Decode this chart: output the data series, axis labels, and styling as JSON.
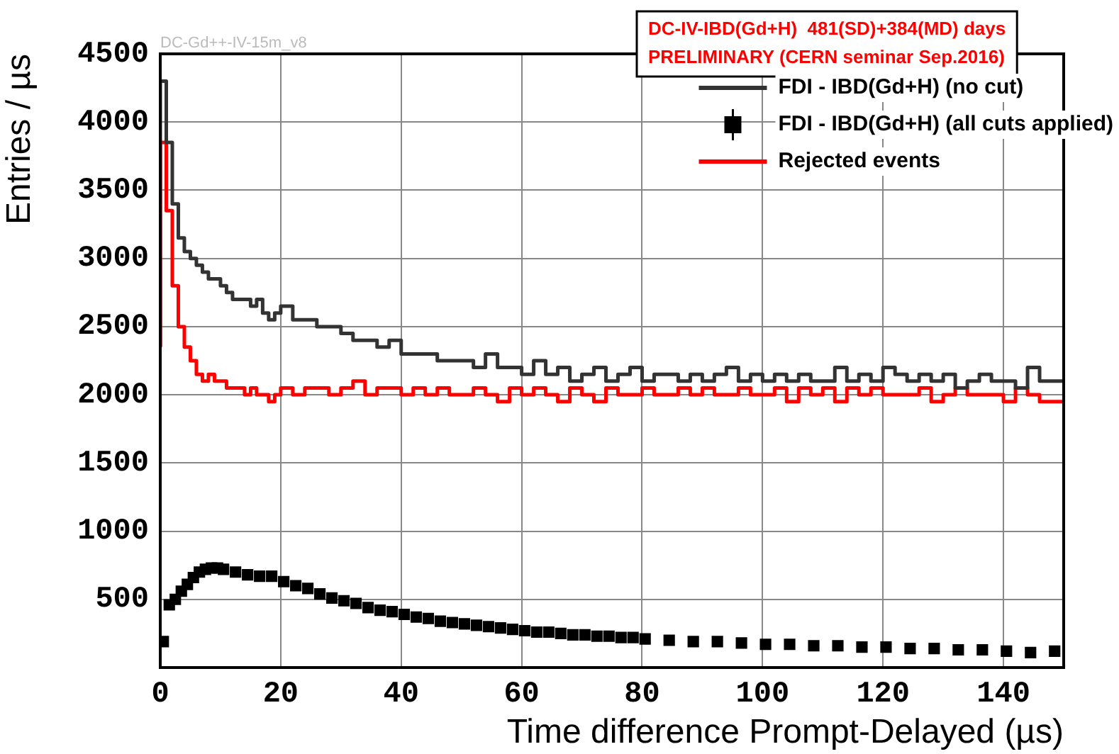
{
  "chart_data": {
    "type": "step",
    "xlabel": "Time difference Prompt-Delayed (µs)",
    "ylabel": "Entries / µs",
    "xlim": [
      0,
      150
    ],
    "xticks": [
      0,
      20,
      40,
      60,
      80,
      100,
      120,
      140
    ],
    "ylim": [
      0,
      4500
    ],
    "yticks": [
      500,
      1000,
      1500,
      2000,
      2500,
      3000,
      3500,
      4000,
      4500
    ],
    "grid": true,
    "legend": "top right",
    "annotations": [
      "DC-Gd++-IV-15m_v8",
      "DC-IV-IBD(Gd+H)  481(SD)+384(MD) days",
      "PRELIMINARY (CERN seminar Sep.2016)"
    ],
    "series": [
      {
        "name": "FDI - IBD(Gd+H) (no cut)",
        "color": "#333333",
        "x": [
          0,
          1,
          2,
          3,
          4,
          5,
          6,
          7,
          8,
          9,
          10,
          11,
          12,
          13,
          14,
          15,
          16,
          17,
          18,
          19,
          20,
          22,
          24,
          26,
          28,
          30,
          32,
          34,
          36,
          38,
          40,
          42,
          44,
          46,
          48,
          50,
          52,
          54,
          56,
          58,
          60,
          62,
          64,
          66,
          68,
          70,
          72,
          74,
          76,
          78,
          80,
          82,
          84,
          86,
          88,
          90,
          92,
          94,
          96,
          98,
          100,
          102,
          104,
          106,
          108,
          110,
          112,
          114,
          116,
          118,
          120,
          122,
          124,
          126,
          128,
          130,
          132,
          134,
          136,
          138,
          140,
          142,
          144,
          146,
          148,
          150
        ],
        "values": [
          2350,
          4300,
          3850,
          3400,
          3150,
          3050,
          3000,
          2950,
          2900,
          2850,
          2850,
          2800,
          2750,
          2700,
          2700,
          2700,
          2650,
          2700,
          2600,
          2550,
          2600,
          2650,
          2550,
          2550,
          2500,
          2500,
          2450,
          2400,
          2400,
          2350,
          2400,
          2300,
          2300,
          2300,
          2250,
          2250,
          2250,
          2200,
          2300,
          2200,
          2200,
          2150,
          2250,
          2150,
          2200,
          2100,
          2150,
          2200,
          2100,
          2150,
          2200,
          2100,
          2150,
          2150,
          2100,
          2150,
          2100,
          2150,
          2200,
          2100,
          2150,
          2100,
          2150,
          2100,
          2150,
          2100,
          2100,
          2200,
          2100,
          2150,
          2100,
          2200,
          2150,
          2100,
          2150,
          2100,
          2150,
          2050,
          2100,
          2150,
          2100,
          2100,
          2050,
          2200,
          2100,
          2100
        ]
      },
      {
        "name": "FDI - IBD(Gd+H) (all cuts applied)",
        "type": "scatter",
        "marker": "square",
        "color": "#000000",
        "x": [
          0.5,
          1.5,
          2.5,
          3.5,
          4.5,
          5.5,
          6.5,
          7.5,
          8.5,
          9.5,
          10.5,
          12.5,
          14.5,
          16.5,
          18.5,
          20.5,
          22.5,
          24.5,
          26.5,
          28.5,
          30.5,
          32.5,
          34.5,
          36.5,
          38.5,
          40.5,
          42.5,
          44.5,
          46.5,
          48.5,
          50.5,
          52.5,
          54.5,
          56.5,
          58.5,
          60.5,
          62.5,
          64.5,
          66.5,
          68.5,
          70.5,
          72.5,
          74.5,
          76.5,
          78.5,
          80.5,
          84.5,
          88.5,
          92.5,
          96.5,
          100.5,
          104.5,
          108.5,
          112.5,
          116.5,
          120.5,
          124.5,
          128.5,
          132.5,
          136.5,
          140.5,
          144.5,
          148.5
        ],
        "values": [
          190,
          460,
          500,
          560,
          610,
          660,
          700,
          720,
          730,
          730,
          720,
          700,
          680,
          670,
          670,
          630,
          600,
          580,
          540,
          510,
          490,
          470,
          440,
          420,
          410,
          390,
          370,
          360,
          340,
          330,
          320,
          310,
          300,
          290,
          280,
          270,
          260,
          260,
          250,
          240,
          240,
          230,
          230,
          220,
          220,
          210,
          200,
          190,
          190,
          180,
          170,
          170,
          160,
          160,
          150,
          150,
          140,
          140,
          130,
          130,
          120,
          110,
          120
        ]
      },
      {
        "name": "Rejected events",
        "color": "#ff0000",
        "x": [
          0,
          1,
          2,
          3,
          4,
          5,
          6,
          7,
          8,
          9,
          10,
          11,
          12,
          13,
          14,
          15,
          16,
          17,
          18,
          19,
          20,
          22,
          24,
          26,
          28,
          30,
          32,
          34,
          36,
          38,
          40,
          42,
          44,
          46,
          48,
          50,
          52,
          54,
          56,
          58,
          60,
          62,
          64,
          66,
          68,
          70,
          72,
          74,
          76,
          78,
          80,
          82,
          84,
          86,
          88,
          90,
          92,
          94,
          96,
          98,
          100,
          102,
          104,
          106,
          108,
          110,
          112,
          114,
          116,
          118,
          120,
          122,
          124,
          126,
          128,
          130,
          132,
          134,
          136,
          138,
          140,
          142,
          144,
          146,
          148,
          150
        ],
        "values": [
          2350,
          3850,
          3350,
          2800,
          2500,
          2350,
          2250,
          2150,
          2100,
          2150,
          2100,
          2100,
          2050,
          2050,
          2050,
          2000,
          2050,
          2000,
          2000,
          1950,
          2000,
          2050,
          2000,
          2050,
          2050,
          2000,
          2050,
          2100,
          2000,
          2050,
          2050,
          2000,
          2050,
          2000,
          2050,
          2000,
          2000,
          2050,
          2000,
          1950,
          2050,
          2000,
          2050,
          2000,
          1950,
          2050,
          2000,
          1950,
          2050,
          2000,
          2000,
          2050,
          2000,
          2000,
          2050,
          2000,
          2050,
          2000,
          2000,
          2050,
          2000,
          2000,
          2050,
          1950,
          2050,
          2000,
          2050,
          1950,
          2050,
          2000,
          2050,
          2000,
          2000,
          2000,
          2050,
          1950,
          2000,
          2050,
          2000,
          2000,
          2000,
          1950,
          2050,
          2000,
          1950,
          1950
        ]
      }
    ]
  }
}
